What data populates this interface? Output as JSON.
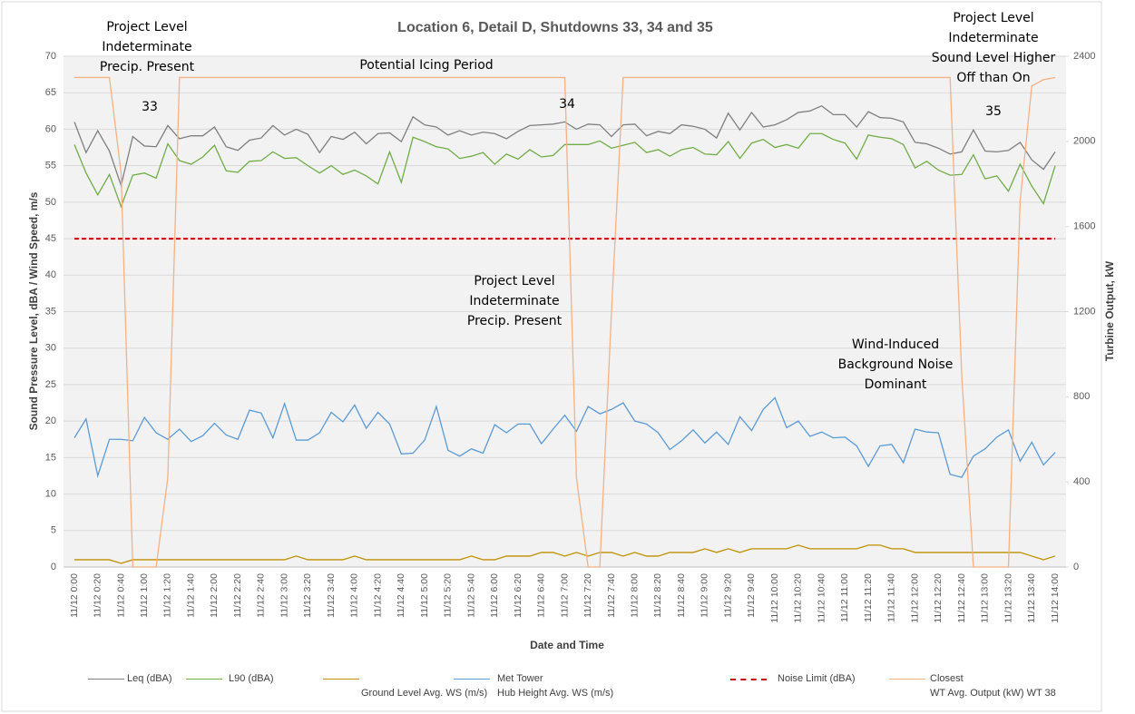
{
  "chart_data": {
    "type": "line",
    "title": "Location 6, Detail D, Shutdowns 33, 34 and 35",
    "x_label": "Date and Time",
    "y_label": "Sound Pressure Level, dBA / Wind Speed, m/s",
    "y2_label": "Turbine Output, kW",
    "ylim": [
      0,
      70
    ],
    "yticks": [
      0,
      5,
      10,
      15,
      20,
      25,
      30,
      35,
      40,
      45,
      50,
      55,
      60,
      65,
      70
    ],
    "y2lim": [
      0,
      2400
    ],
    "y2ticks": [
      0,
      400,
      800,
      1200,
      1600,
      2000,
      2400
    ],
    "grid": true,
    "legend": "bottom",
    "categories": [
      "11/12 0:00",
      null,
      "11/12 0:20",
      null,
      "11/12 0:40",
      null,
      "11/12 1:00",
      null,
      "11/12 1:20",
      null,
      "11/12 1:40",
      null,
      "11/12 2:00",
      null,
      "11/12 2:20",
      null,
      "11/12 2:40",
      null,
      "11/12 3:00",
      null,
      "11/12 3:20",
      null,
      "11/12 3:40",
      null,
      "11/12 4:00",
      null,
      "11/12 4:20",
      null,
      "11/12 4:40",
      null,
      "11/12 5:00",
      null,
      "11/12 5:20",
      null,
      "11/12 5:40",
      null,
      "11/12 6:00",
      null,
      "11/12 6:20",
      null,
      "11/12 6:40",
      null,
      "11/12 7:00",
      null,
      "11/12 7:20",
      null,
      "11/12 7:40",
      null,
      "11/12 8:00",
      null,
      "11/12 8:20",
      null,
      "11/12 8:40",
      null,
      "11/12 9:00",
      null,
      "11/12 9:20",
      null,
      "11/12 9:40",
      null,
      "11/12 10:00",
      null,
      "11/12 10:20",
      null,
      "11/12 10:40",
      null,
      "11/12 11:00",
      null,
      "11/12 11:20",
      null,
      "11/12 11:40",
      null,
      "11/12 12:00",
      null,
      "11/12 12:20",
      null,
      "11/12 12:40",
      null,
      "11/12 13:00",
      null,
      "11/12 13:20",
      null,
      "11/12 13:40",
      null,
      "11/12 14:00"
    ],
    "series": [
      {
        "name": "Leq (dBA)",
        "color": "#7f7f7f",
        "values": [
          61,
          56.8,
          59.8,
          57,
          52.3,
          59,
          57.7,
          57.6,
          60.5,
          58.7,
          59.1,
          59.1,
          60.3,
          57.6,
          57.1,
          58.5,
          58.8,
          60.5,
          59.2,
          60,
          59.3,
          56.8,
          59,
          58.6,
          59.6,
          58,
          59.4,
          59.5,
          58.3,
          61.7,
          60.6,
          60.3,
          59.2,
          59.8,
          59.2,
          59.6,
          59.4,
          58.7,
          59.7,
          60.5,
          60.6,
          60.7,
          61,
          60,
          60.7,
          60.6,
          59,
          60.6,
          60.7,
          59.1,
          59.7,
          59.4,
          60.6,
          60.4,
          60,
          58.8,
          62.2,
          59.9,
          62.3,
          60.3,
          60.6,
          61.3,
          62.3,
          62.5,
          63.2,
          62,
          62,
          60.3,
          62.4,
          61.6,
          61.5,
          61,
          58.2,
          58,
          57.4,
          56.6,
          56.9,
          59.9,
          57,
          56.9,
          57.1,
          58.2,
          55.8,
          54.5,
          56.9
        ]
      },
      {
        "name": "L90 (dBA)",
        "color": "#70ad47",
        "values": [
          57.9,
          54,
          51,
          53.8,
          49.4,
          53.7,
          54,
          53.3,
          58,
          55.7,
          55.2,
          56.2,
          57.8,
          54.3,
          54.1,
          55.6,
          55.7,
          56.9,
          56,
          56.1,
          55,
          54,
          55,
          53.8,
          54.4,
          53.6,
          52.5,
          56.9,
          52.7,
          58.9,
          58.3,
          57.6,
          57.3,
          56,
          56.3,
          56.8,
          55.2,
          56.6,
          55.9,
          57.2,
          56.2,
          56.4,
          57.9,
          57.9,
          57.9,
          58.4,
          57.4,
          57.8,
          58.2,
          56.8,
          57.2,
          56.3,
          57.2,
          57.5,
          56.6,
          56.5,
          58.3,
          56,
          58.1,
          58.6,
          57.5,
          57.9,
          57.4,
          59.4,
          59.4,
          58.6,
          58.1,
          55.9,
          59.2,
          58.9,
          58.7,
          57.9,
          54.7,
          55.6,
          54.4,
          53.7,
          53.8,
          56.5,
          53.2,
          53.6,
          51.5,
          55.2,
          52.2,
          49.8,
          55
        ]
      },
      {
        "name": "Ground Level Avg. WS (m/s)",
        "color": "#bf9000",
        "values": [
          1,
          1,
          1,
          1,
          0.5,
          1,
          1,
          1,
          1,
          1,
          1,
          1,
          1,
          1,
          1,
          1,
          1,
          1,
          1,
          1.5,
          1,
          1,
          1,
          1,
          1.5,
          1,
          1,
          1,
          1,
          1,
          1,
          1,
          1,
          1,
          1.5,
          1,
          1,
          1.5,
          1.5,
          1.5,
          2,
          2,
          1.5,
          2,
          1.5,
          2,
          2,
          1.5,
          2,
          1.5,
          1.5,
          2,
          2,
          2,
          2.5,
          2,
          2.5,
          2,
          2.5,
          2.5,
          2.5,
          2.5,
          3,
          2.5,
          2.5,
          2.5,
          2.5,
          2.5,
          3,
          3,
          2.5,
          2.5,
          2,
          2,
          2,
          2,
          2,
          2,
          2,
          2,
          2,
          2,
          1.5,
          1,
          1.5
        ]
      },
      {
        "name": "Met Tower\nHub Height Avg. WS (m/s)",
        "color": "#5b9bd5",
        "values": [
          17.7,
          20.3,
          12.5,
          17.5,
          17.5,
          17.3,
          20.5,
          18.4,
          17.5,
          18.9,
          17.2,
          18,
          19.7,
          18.1,
          17.5,
          21.5,
          21.1,
          17.7,
          22.4,
          17.4,
          17.4,
          18.4,
          21.2,
          19.9,
          22.2,
          19,
          21.2,
          19.6,
          15.5,
          15.6,
          17.4,
          22,
          16,
          15.2,
          16.2,
          15.6,
          19.5,
          18.4,
          19.6,
          19.6,
          16.9,
          18.9,
          20.8,
          18.6,
          22,
          21,
          21.6,
          22.5,
          20,
          19.6,
          18.4,
          16.1,
          17.3,
          18.8,
          17,
          18.5,
          16.8,
          20.6,
          18.7,
          21.6,
          23.2,
          19.1,
          20,
          17.9,
          18.5,
          17.7,
          17.8,
          16.6,
          13.8,
          16.6,
          16.8,
          14.3,
          18.9,
          18.5,
          18.4,
          12.7,
          12.3,
          15.2,
          16.2,
          17.8,
          18.8,
          14.5,
          17.1,
          14,
          15.7
        ]
      },
      {
        "name": "Noise Limit (dBA)",
        "color": "#c00000",
        "dashed": true,
        "values": [
          45,
          45,
          45,
          45,
          45,
          45,
          45,
          45,
          45,
          45,
          45,
          45,
          45,
          45,
          45,
          45,
          45,
          45,
          45,
          45,
          45,
          45,
          45,
          45,
          45,
          45,
          45,
          45,
          45,
          45,
          45,
          45,
          45,
          45,
          45,
          45,
          45,
          45,
          45,
          45,
          45,
          45,
          45,
          45,
          45,
          45,
          45,
          45,
          45,
          45,
          45,
          45,
          45,
          45,
          45,
          45,
          45,
          45,
          45,
          45,
          45,
          45,
          45,
          45,
          45,
          45,
          45,
          45,
          45,
          45,
          45,
          45,
          45,
          45,
          45,
          45,
          45,
          45,
          45,
          45,
          45,
          45,
          45,
          45,
          45
        ]
      },
      {
        "name": "Closest\nWT Avg. Output (kW) WT 38",
        "color": "#f4b183",
        "axis": "y2",
        "values": [
          2300,
          2300,
          2300,
          2300,
          1850,
          0,
          0,
          0,
          420,
          2300,
          2300,
          2300,
          2300,
          2300,
          2300,
          2300,
          2300,
          2300,
          2300,
          2300,
          2300,
          2300,
          2300,
          2300,
          2300,
          2300,
          2300,
          2300,
          2300,
          2300,
          2300,
          2300,
          2300,
          2300,
          2300,
          2300,
          2300,
          2300,
          2300,
          2300,
          2300,
          2300,
          2300,
          420,
          0,
          0,
          1200,
          2300,
          2300,
          2300,
          2300,
          2300,
          2300,
          2300,
          2300,
          2300,
          2300,
          2300,
          2300,
          2300,
          2300,
          2300,
          2300,
          2300,
          2300,
          2300,
          2300,
          2300,
          2300,
          2300,
          2300,
          2300,
          2300,
          2300,
          2300,
          2300,
          900,
          0,
          0,
          0,
          0,
          1720,
          2260,
          2290,
          2300
        ]
      }
    ],
    "annotations": [
      [
        "Project Level",
        "Indeterminate",
        "Precip. Present"
      ],
      [
        "33"
      ],
      [
        "Potential Icing Period"
      ],
      [
        "34"
      ],
      [
        "Project Level",
        "Indeterminate",
        "Precip. Present"
      ],
      [
        "Wind-Induced",
        "Background Noise",
        "Dominant"
      ],
      [
        "35"
      ],
      [
        "Project Level",
        "Indeterminate",
        "Sound Level Higher",
        "Off than On"
      ]
    ]
  }
}
